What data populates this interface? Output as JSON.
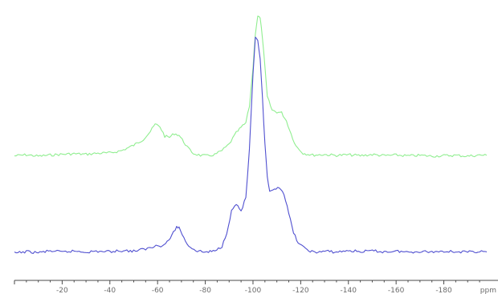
{
  "chart_data": {
    "type": "line",
    "title": "",
    "xlabel": "ppm",
    "ylabel": "",
    "x_reversed": true,
    "xlim": [
      0,
      -198
    ],
    "ylim": [
      0,
      1.0
    ],
    "grid": false,
    "legend": "none",
    "x_ticks": [
      {
        "value": -20,
        "label": "-20"
      },
      {
        "value": -40,
        "label": "-40"
      },
      {
        "value": -60,
        "label": "-60"
      },
      {
        "value": -80,
        "label": "-80"
      },
      {
        "value": -100,
        "label": "-100"
      },
      {
        "value": -120,
        "label": "-120"
      },
      {
        "value": -140,
        "label": "-140"
      },
      {
        "value": -160,
        "label": "-160"
      },
      {
        "value": -180,
        "label": "-180"
      }
    ],
    "series": [
      {
        "color": "#90ee90",
        "points": [
          [
            0,
            0.438
          ],
          [
            -5,
            0.442
          ],
          [
            -10,
            0.437
          ],
          [
            -15,
            0.441
          ],
          [
            -20,
            0.444
          ],
          [
            -25,
            0.446
          ],
          [
            -30,
            0.444
          ],
          [
            -35,
            0.448
          ],
          [
            -40,
            0.449
          ],
          [
            -45,
            0.458
          ],
          [
            -50,
            0.478
          ],
          [
            -54,
            0.5
          ],
          [
            -57,
            0.53
          ],
          [
            -59,
            0.557
          ],
          [
            -61,
            0.548
          ],
          [
            -63,
            0.512
          ],
          [
            -65,
            0.508
          ],
          [
            -67,
            0.522
          ],
          [
            -69,
            0.516
          ],
          [
            -71,
            0.49
          ],
          [
            -73,
            0.465
          ],
          [
            -75,
            0.447
          ],
          [
            -78,
            0.44
          ],
          [
            -81,
            0.438
          ],
          [
            -84,
            0.443
          ],
          [
            -87,
            0.458
          ],
          [
            -90,
            0.482
          ],
          [
            -93,
            0.525
          ],
          [
            -95,
            0.545
          ],
          [
            -97,
            0.562
          ],
          [
            -98.5,
            0.625
          ],
          [
            -100,
            0.77
          ],
          [
            -101,
            0.9
          ],
          [
            -102,
            0.965
          ],
          [
            -103,
            0.955
          ],
          [
            -104,
            0.88
          ],
          [
            -105,
            0.77
          ],
          [
            -106,
            0.66
          ],
          [
            -108,
            0.61
          ],
          [
            -110,
            0.603
          ],
          [
            -112,
            0.6
          ],
          [
            -114,
            0.57
          ],
          [
            -116,
            0.52
          ],
          [
            -118,
            0.475
          ],
          [
            -121,
            0.448
          ],
          [
            -125,
            0.441
          ],
          [
            -130,
            0.443
          ],
          [
            -135,
            0.44
          ],
          [
            -140,
            0.442
          ],
          [
            -145,
            0.439
          ],
          [
            -150,
            0.443
          ],
          [
            -155,
            0.439
          ],
          [
            -160,
            0.441
          ],
          [
            -165,
            0.438
          ],
          [
            -170,
            0.44
          ],
          [
            -175,
            0.437
          ],
          [
            -180,
            0.439
          ],
          [
            -185,
            0.44
          ],
          [
            -190,
            0.437
          ],
          [
            -195,
            0.441
          ],
          [
            -198,
            0.44
          ]
        ]
      },
      {
        "color": "#5050d0",
        "points": [
          [
            0,
            0.072
          ],
          [
            -5,
            0.078
          ],
          [
            -10,
            0.074
          ],
          [
            -15,
            0.081
          ],
          [
            -20,
            0.076
          ],
          [
            -25,
            0.08
          ],
          [
            -30,
            0.077
          ],
          [
            -35,
            0.079
          ],
          [
            -40,
            0.078
          ],
          [
            -45,
            0.082
          ],
          [
            -50,
            0.08
          ],
          [
            -55,
            0.088
          ],
          [
            -58,
            0.095
          ],
          [
            -60,
            0.105
          ],
          [
            -62,
            0.098
          ],
          [
            -64,
            0.115
          ],
          [
            -66,
            0.138
          ],
          [
            -68,
            0.172
          ],
          [
            -69,
            0.168
          ],
          [
            -71,
            0.13
          ],
          [
            -73,
            0.1
          ],
          [
            -76,
            0.082
          ],
          [
            -80,
            0.076
          ],
          [
            -84,
            0.08
          ],
          [
            -87,
            0.098
          ],
          [
            -89,
            0.15
          ],
          [
            -91,
            0.23
          ],
          [
            -93,
            0.258
          ],
          [
            -95,
            0.23
          ],
          [
            -97,
            0.28
          ],
          [
            -98.5,
            0.46
          ],
          [
            -100,
            0.74
          ],
          [
            -101,
            0.88
          ],
          [
            -102,
            0.875
          ],
          [
            -103,
            0.8
          ],
          [
            -104,
            0.65
          ],
          [
            -105,
            0.48
          ],
          [
            -106,
            0.36
          ],
          [
            -107,
            0.3
          ],
          [
            -109,
            0.31
          ],
          [
            -111,
            0.322
          ],
          [
            -113,
            0.296
          ],
          [
            -115,
            0.22
          ],
          [
            -117,
            0.15
          ],
          [
            -119,
            0.11
          ],
          [
            -122,
            0.088
          ],
          [
            -126,
            0.074
          ],
          [
            -130,
            0.08
          ],
          [
            -135,
            0.076
          ],
          [
            -140,
            0.082
          ],
          [
            -145,
            0.078
          ],
          [
            -150,
            0.081
          ],
          [
            -155,
            0.077
          ],
          [
            -160,
            0.08
          ],
          [
            -165,
            0.076
          ],
          [
            -170,
            0.079
          ],
          [
            -175,
            0.077
          ],
          [
            -180,
            0.08
          ],
          [
            -185,
            0.078
          ],
          [
            -190,
            0.076
          ],
          [
            -195,
            0.079
          ],
          [
            -198,
            0.077
          ]
        ]
      }
    ]
  }
}
